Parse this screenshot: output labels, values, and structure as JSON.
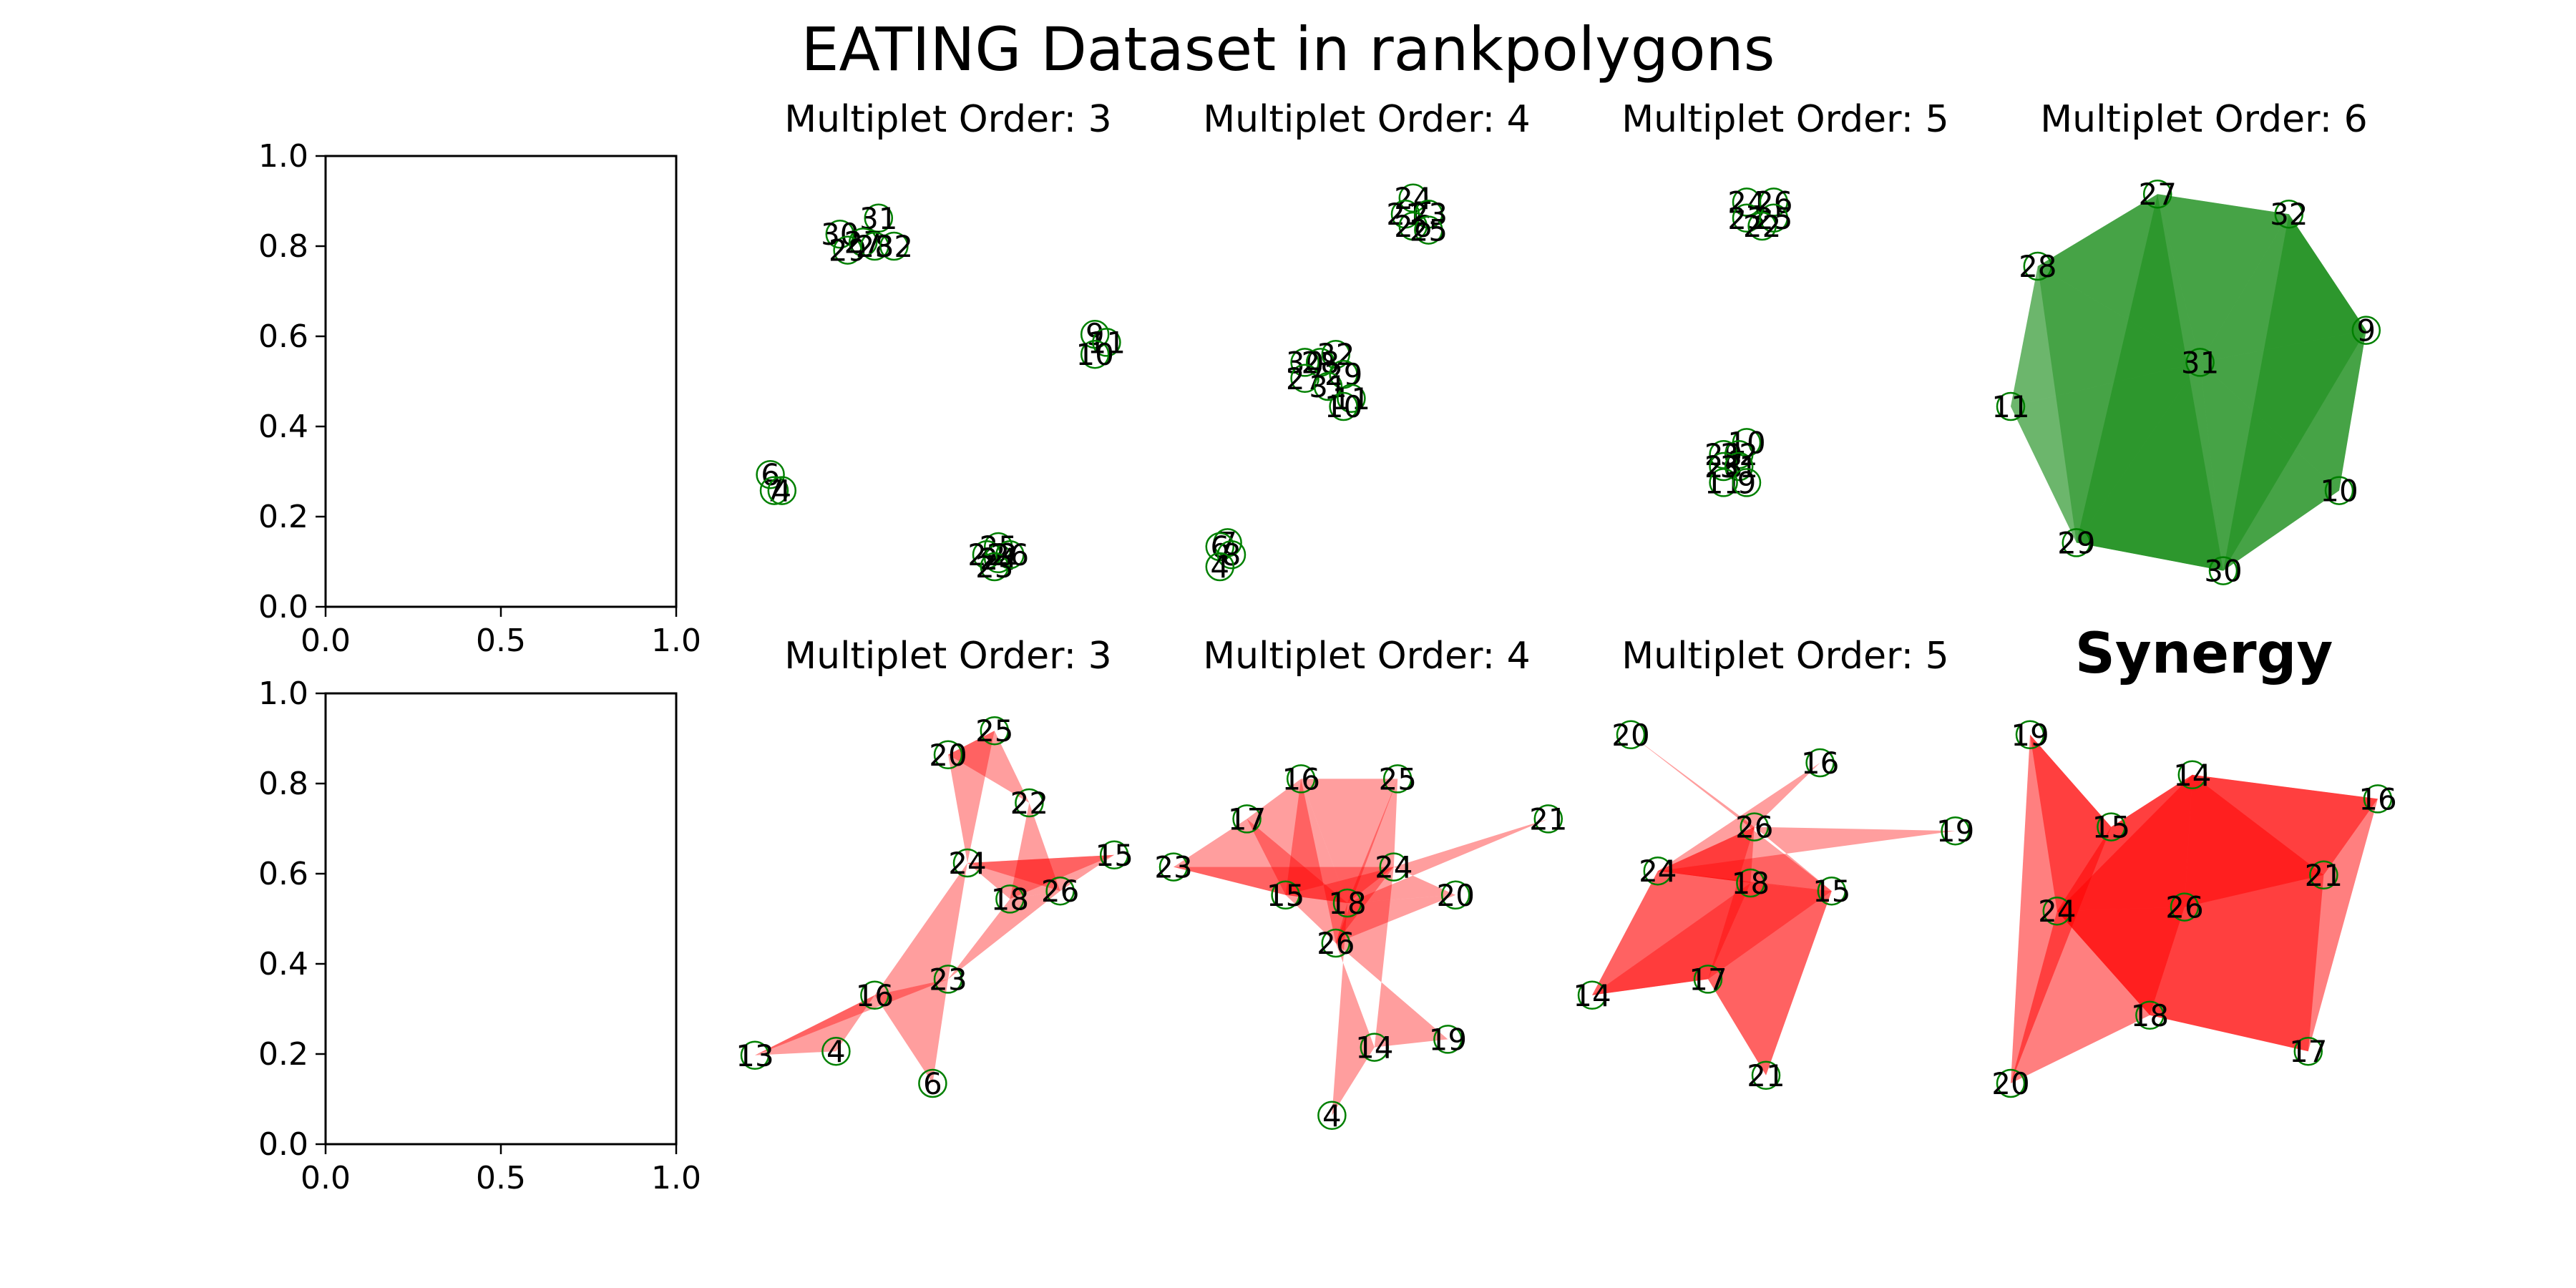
{
  "figure": {
    "title": "EATING  Dataset in rankpolygons"
  },
  "chart_data": [
    {
      "type": "empty-axes",
      "row": 0,
      "x_ticks": [
        "0.0",
        "0.5",
        "1.0"
      ],
      "y_ticks": [
        "0.0",
        "0.2",
        "0.4",
        "0.6",
        "0.8",
        "1.0"
      ],
      "xlim": [
        0,
        1
      ],
      "ylim": [
        0,
        1
      ]
    },
    {
      "type": "network-polygons",
      "row": 0,
      "col": 1,
      "title": "Multiplet Order: 3",
      "color": "#008000",
      "fill_opacity": 0,
      "nodes": [
        {
          "label": "31",
          "x": 0.32,
          "y": 0.92
        },
        {
          "label": "30",
          "x": 0.22,
          "y": 0.88
        },
        {
          "label": "29",
          "x": 0.24,
          "y": 0.84
        },
        {
          "label": "27",
          "x": 0.28,
          "y": 0.86
        },
        {
          "label": "28",
          "x": 0.31,
          "y": 0.85
        },
        {
          "label": "32",
          "x": 0.36,
          "y": 0.85
        },
        {
          "label": "9",
          "x": 0.88,
          "y": 0.63
        },
        {
          "label": "11",
          "x": 0.91,
          "y": 0.61
        },
        {
          "label": "10",
          "x": 0.88,
          "y": 0.58
        },
        {
          "label": "6",
          "x": 0.04,
          "y": 0.28
        },
        {
          "label": "7",
          "x": 0.05,
          "y": 0.24
        },
        {
          "label": "4",
          "x": 0.07,
          "y": 0.24
        },
        {
          "label": "25",
          "x": 0.63,
          "y": 0.1
        },
        {
          "label": "22",
          "x": 0.6,
          "y": 0.08
        },
        {
          "label": "24",
          "x": 0.63,
          "y": 0.07
        },
        {
          "label": "26",
          "x": 0.66,
          "y": 0.08
        },
        {
          "label": "23",
          "x": 0.62,
          "y": 0.05
        }
      ],
      "polygons": []
    },
    {
      "type": "network-polygons",
      "row": 0,
      "col": 2,
      "title": "Multiplet Order: 4",
      "color": "#008000",
      "fill_opacity": 0,
      "nodes": [
        {
          "label": "24",
          "x": 0.62,
          "y": 0.97
        },
        {
          "label": "21",
          "x": 0.6,
          "y": 0.93
        },
        {
          "label": "23",
          "x": 0.66,
          "y": 0.93
        },
        {
          "label": "26",
          "x": 0.62,
          "y": 0.9
        },
        {
          "label": "25",
          "x": 0.66,
          "y": 0.89
        },
        {
          "label": "32",
          "x": 0.42,
          "y": 0.58
        },
        {
          "label": "30",
          "x": 0.34,
          "y": 0.56
        },
        {
          "label": "28",
          "x": 0.38,
          "y": 0.56
        },
        {
          "label": "27",
          "x": 0.34,
          "y": 0.52
        },
        {
          "label": "29",
          "x": 0.44,
          "y": 0.53
        },
        {
          "label": "31",
          "x": 0.4,
          "y": 0.5
        },
        {
          "label": "11",
          "x": 0.46,
          "y": 0.47
        },
        {
          "label": "10",
          "x": 0.44,
          "y": 0.45
        },
        {
          "label": "7",
          "x": 0.14,
          "y": 0.11
        },
        {
          "label": "6",
          "x": 0.12,
          "y": 0.1
        },
        {
          "label": "8",
          "x": 0.15,
          "y": 0.08
        },
        {
          "label": "4",
          "x": 0.12,
          "y": 0.05
        }
      ],
      "polygons": []
    },
    {
      "type": "network-polygons",
      "row": 0,
      "col": 3,
      "title": "Multiplet Order: 5",
      "color": "#008000",
      "fill_opacity": 0,
      "nodes": [
        {
          "label": "24",
          "x": 0.4,
          "y": 0.96
        },
        {
          "label": "26",
          "x": 0.47,
          "y": 0.96
        },
        {
          "label": "23",
          "x": 0.4,
          "y": 0.92
        },
        {
          "label": "25",
          "x": 0.47,
          "y": 0.92
        },
        {
          "label": "22",
          "x": 0.44,
          "y": 0.9
        },
        {
          "label": "10",
          "x": 0.4,
          "y": 0.36
        },
        {
          "label": "29",
          "x": 0.34,
          "y": 0.33
        },
        {
          "label": "32",
          "x": 0.38,
          "y": 0.33
        },
        {
          "label": "28",
          "x": 0.34,
          "y": 0.3
        },
        {
          "label": "31",
          "x": 0.38,
          "y": 0.3
        },
        {
          "label": "11",
          "x": 0.34,
          "y": 0.26
        },
        {
          "label": "9",
          "x": 0.4,
          "y": 0.26
        }
      ],
      "polygons": []
    },
    {
      "type": "network-polygons",
      "row": 0,
      "col": 4,
      "title": "Multiplet Order: 6",
      "color": "#008000",
      "fill_opacity": 0.35,
      "nodes": [
        {
          "label": "27",
          "x": 0.38,
          "y": 0.98
        },
        {
          "label": "32",
          "x": 0.72,
          "y": 0.93
        },
        {
          "label": "28",
          "x": 0.07,
          "y": 0.8
        },
        {
          "label": "9",
          "x": 0.92,
          "y": 0.64
        },
        {
          "label": "31",
          "x": 0.49,
          "y": 0.56
        },
        {
          "label": "11",
          "x": 0.0,
          "y": 0.45
        },
        {
          "label": "10",
          "x": 0.85,
          "y": 0.24
        },
        {
          "label": "29",
          "x": 0.17,
          "y": 0.11
        },
        {
          "label": "30",
          "x": 0.55,
          "y": 0.04
        }
      ],
      "polygons": [
        [
          "27",
          "32",
          "31"
        ],
        [
          "28",
          "27",
          "31"
        ],
        [
          "32",
          "9",
          "31"
        ],
        [
          "9",
          "10",
          "31"
        ],
        [
          "10",
          "30",
          "31"
        ],
        [
          "30",
          "29",
          "31"
        ],
        [
          "29",
          "11",
          "31"
        ],
        [
          "11",
          "28",
          "31"
        ],
        [
          "28",
          "27",
          "32",
          "9",
          "10",
          "30",
          "29",
          "11"
        ],
        [
          "27",
          "32",
          "9",
          "10",
          "30",
          "29"
        ],
        [
          "28",
          "27",
          "30",
          "29"
        ],
        [
          "32",
          "9",
          "30"
        ]
      ]
    },
    {
      "type": "empty-axes",
      "row": 1,
      "x_ticks": [
        "0.0",
        "0.5",
        "1.0"
      ],
      "y_ticks": [
        "0.0",
        "0.2",
        "0.4",
        "0.6",
        "0.8",
        "1.0"
      ],
      "xlim": [
        0,
        1
      ],
      "ylim": [
        0,
        1
      ]
    },
    {
      "type": "network-polygons",
      "row": 1,
      "col": 1,
      "title": "Multiplet Order: 3",
      "color": "#ff0000",
      "fill_opacity": 0.38,
      "nodes": [
        {
          "label": "25",
          "x": 0.62,
          "y": 0.98
        },
        {
          "label": "20",
          "x": 0.5,
          "y": 0.92
        },
        {
          "label": "22",
          "x": 0.71,
          "y": 0.8
        },
        {
          "label": "15",
          "x": 0.93,
          "y": 0.67
        },
        {
          "label": "24",
          "x": 0.55,
          "y": 0.65
        },
        {
          "label": "26",
          "x": 0.79,
          "y": 0.58
        },
        {
          "label": "18",
          "x": 0.66,
          "y": 0.56
        },
        {
          "label": "23",
          "x": 0.5,
          "y": 0.36
        },
        {
          "label": "16",
          "x": 0.31,
          "y": 0.32
        },
        {
          "label": "4",
          "x": 0.21,
          "y": 0.18
        },
        {
          "label": "13",
          "x": 0.0,
          "y": 0.17
        },
        {
          "label": "6",
          "x": 0.46,
          "y": 0.1
        }
      ],
      "polygons": [
        [
          "20",
          "25",
          "22"
        ],
        [
          "20",
          "24",
          "25"
        ],
        [
          "22",
          "18",
          "26"
        ],
        [
          "24",
          "26",
          "15"
        ],
        [
          "24",
          "18",
          "15"
        ],
        [
          "24",
          "16",
          "23"
        ],
        [
          "16",
          "13",
          "4"
        ],
        [
          "16",
          "23",
          "6"
        ],
        [
          "18",
          "26",
          "23"
        ],
        [
          "13",
          "16",
          "23"
        ]
      ]
    },
    {
      "type": "network-polygons",
      "row": 1,
      "col": 2,
      "title": "Multiplet Order: 4",
      "color": "#ff0000",
      "fill_opacity": 0.38,
      "nodes": [
        {
          "label": "16",
          "x": 0.33,
          "y": 0.86
        },
        {
          "label": "25",
          "x": 0.58,
          "y": 0.86
        },
        {
          "label": "21",
          "x": 0.97,
          "y": 0.76
        },
        {
          "label": "17",
          "x": 0.19,
          "y": 0.76
        },
        {
          "label": "23",
          "x": 0.0,
          "y": 0.64
        },
        {
          "label": "24",
          "x": 0.57,
          "y": 0.64
        },
        {
          "label": "20",
          "x": 0.73,
          "y": 0.57
        },
        {
          "label": "15",
          "x": 0.29,
          "y": 0.57
        },
        {
          "label": "18",
          "x": 0.45,
          "y": 0.55
        },
        {
          "label": "26",
          "x": 0.42,
          "y": 0.45
        },
        {
          "label": "19",
          "x": 0.71,
          "y": 0.21
        },
        {
          "label": "14",
          "x": 0.52,
          "y": 0.19
        },
        {
          "label": "4",
          "x": 0.41,
          "y": 0.02
        }
      ],
      "polygons": [
        [
          "16",
          "25",
          "24",
          "18"
        ],
        [
          "17",
          "16",
          "18",
          "15"
        ],
        [
          "23",
          "17",
          "18",
          "15"
        ],
        [
          "21",
          "24",
          "20",
          "18"
        ],
        [
          "16",
          "26",
          "24",
          "15"
        ],
        [
          "25",
          "18",
          "20",
          "26"
        ],
        [
          "26",
          "19",
          "14",
          "24"
        ],
        [
          "26",
          "14",
          "4",
          "18"
        ],
        [
          "23",
          "24",
          "26",
          "15"
        ]
      ]
    },
    {
      "type": "network-polygons",
      "row": 1,
      "col": 3,
      "title": "Multiplet Order: 5",
      "color": "#ff0000",
      "fill_opacity": 0.38,
      "nodes": [
        {
          "label": "20",
          "x": 0.1,
          "y": 0.97
        },
        {
          "label": "16",
          "x": 0.59,
          "y": 0.9
        },
        {
          "label": "19",
          "x": 0.94,
          "y": 0.73
        },
        {
          "label": "26",
          "x": 0.42,
          "y": 0.74
        },
        {
          "label": "24",
          "x": 0.17,
          "y": 0.63
        },
        {
          "label": "18",
          "x": 0.41,
          "y": 0.6
        },
        {
          "label": "15",
          "x": 0.62,
          "y": 0.58
        },
        {
          "label": "17",
          "x": 0.3,
          "y": 0.36
        },
        {
          "label": "14",
          "x": 0.0,
          "y": 0.32
        },
        {
          "label": "21",
          "x": 0.45,
          "y": 0.12
        }
      ],
      "polygons": [
        [
          "20",
          "26",
          "18",
          "24",
          "15"
        ],
        [
          "16",
          "26",
          "18",
          "15",
          "24"
        ],
        [
          "19",
          "26",
          "15",
          "18",
          "24"
        ],
        [
          "24",
          "26",
          "18",
          "17",
          "14"
        ],
        [
          "14",
          "17",
          "21",
          "15",
          "24"
        ],
        [
          "24",
          "18",
          "15",
          "17",
          "26"
        ],
        [
          "17",
          "21",
          "15",
          "18",
          "14"
        ]
      ]
    },
    {
      "type": "network-polygons",
      "row": 1,
      "col": 4,
      "title": "Synergy",
      "title_bold": true,
      "color": "#ff0000",
      "fill_opacity": 0.5,
      "nodes": [
        {
          "label": "19",
          "x": 0.05,
          "y": 0.97
        },
        {
          "label": "14",
          "x": 0.47,
          "y": 0.87
        },
        {
          "label": "16",
          "x": 0.95,
          "y": 0.81
        },
        {
          "label": "15",
          "x": 0.26,
          "y": 0.74
        },
        {
          "label": "21",
          "x": 0.81,
          "y": 0.62
        },
        {
          "label": "26",
          "x": 0.45,
          "y": 0.54
        },
        {
          "label": "24",
          "x": 0.12,
          "y": 0.53
        },
        {
          "label": "18",
          "x": 0.36,
          "y": 0.27
        },
        {
          "label": "17",
          "x": 0.77,
          "y": 0.18
        },
        {
          "label": "20",
          "x": 0.0,
          "y": 0.1
        }
      ],
      "polygons": [
        [
          "19",
          "15",
          "24"
        ],
        [
          "15",
          "14",
          "26",
          "24"
        ],
        [
          "14",
          "16",
          "21",
          "26"
        ],
        [
          "24",
          "26",
          "18",
          "20"
        ],
        [
          "26",
          "21",
          "17",
          "18"
        ],
        [
          "14",
          "16",
          "17",
          "18",
          "24"
        ],
        [
          "15",
          "24",
          "18",
          "26",
          "21",
          "14"
        ],
        [
          "19",
          "15",
          "20"
        ]
      ]
    }
  ]
}
